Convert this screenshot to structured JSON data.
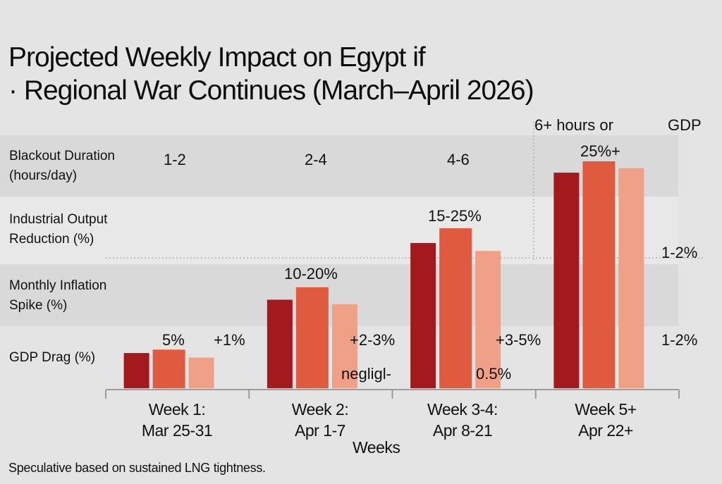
{
  "chart_data": {
    "type": "bar",
    "title": "Projected Weekly Impact on Egypt if · Regional War Continues (March–April 2026)",
    "title_lines": [
      "Projected Weekly Impact on Egypt if",
      "· Regional War Continues (March–April 2026)"
    ],
    "xlabel": "Weeks",
    "ylabel": "",
    "categories": [
      {
        "line1": "Week 1:",
        "line2": "Mar 25-31"
      },
      {
        "line1": "Week 2:",
        "line2": "Apr 1-7"
      },
      {
        "line1": "Week 3-4:",
        "line2": "Apr 8-21"
      },
      {
        "line1": "Week 5+",
        "line2": "Apr 22+"
      }
    ],
    "ylim": [
      0,
      100
    ],
    "series": [
      {
        "name": "series-1",
        "color": "#a3191e",
        "values": [
          15.5,
          39,
          64,
          95
        ]
      },
      {
        "name": "series-2",
        "color": "#e05a40",
        "values": [
          17,
          44.5,
          70.5,
          100
        ]
      },
      {
        "name": "series-3",
        "color": "#f0a086",
        "values": [
          13.5,
          37,
          60.5,
          97
        ]
      }
    ],
    "row_labels": [
      {
        "line1": "Blackout Duration",
        "line2": "(hours/day)"
      },
      {
        "line1": "Industrial Output",
        "line2": "Reduction (%)"
      },
      {
        "line1": "Monthly Inflation",
        "line2": "Spike (%)"
      },
      {
        "line1": "GDP Drag (%)",
        "line2": ""
      }
    ],
    "annotations": {
      "blackout_w1": "1-2",
      "blackout_w2": "2-4",
      "blackout_w3": "4-6",
      "blackout_w5": "6+ hours or",
      "gdp_top": "GDP",
      "industrial_w5": "25%+",
      "industrial_w3": "15-25%",
      "industrial_right": "1-2%",
      "inflation_w2": "10-20%",
      "gdp_w1_pct": "5%",
      "inflation_w1": "+1%",
      "inflation_w2_b": "+2-3%",
      "inflation_w3": "+3-5%",
      "gdp_right": "1-2%",
      "gdp_w2": "negligl-",
      "gdp_w3": "0.5%"
    },
    "grid": false,
    "legend": "none",
    "note": "Speculative based on sustained LNG tightness."
  }
}
